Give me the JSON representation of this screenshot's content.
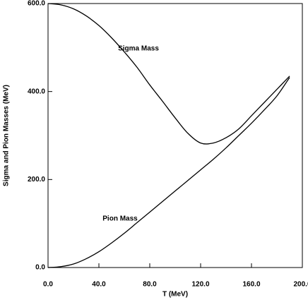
{
  "chart_data": {
    "type": "line",
    "xlabel": "T (MeV)",
    "ylabel": "Sigma and Pion Masses (MeV)",
    "annotations": [
      "Sigma Mass",
      "Pion Mass"
    ],
    "x": [
      0,
      10,
      20,
      30,
      40,
      50,
      60,
      70,
      80,
      90,
      100,
      110,
      120,
      130,
      140,
      150,
      160,
      170,
      180,
      190
    ],
    "series": [
      {
        "name": "Sigma Mass",
        "color": "#000000",
        "values": [
          600,
          597,
          588,
          572,
          550,
          522,
          490,
          455,
          415,
          378,
          340,
          305,
          283,
          283,
          295,
          315,
          345,
          375,
          405,
          435
        ]
      },
      {
        "name": "Pion Mass",
        "color": "#000000",
        "values": [
          0,
          2,
          8,
          20,
          36,
          56,
          78,
          102,
          126,
          150,
          174,
          198,
          222,
          246,
          272,
          300,
          328,
          358,
          390,
          432
        ]
      }
    ],
    "xlim": [
      0,
      200
    ],
    "ylim": [
      0,
      600
    ],
    "xticks": [
      {
        "value": 0,
        "label": "0.0"
      },
      {
        "value": 40,
        "label": "40.0"
      },
      {
        "value": 80,
        "label": "80.0"
      },
      {
        "value": 120,
        "label": "120.0"
      },
      {
        "value": 160,
        "label": "160.0"
      },
      {
        "value": 200,
        "label": "200.0"
      }
    ],
    "yticks": [
      {
        "value": 0,
        "label": "0.0"
      },
      {
        "value": 200,
        "label": "200.0"
      },
      {
        "value": 400,
        "label": "400.0"
      },
      {
        "value": 600,
        "label": "600.0"
      }
    ]
  }
}
